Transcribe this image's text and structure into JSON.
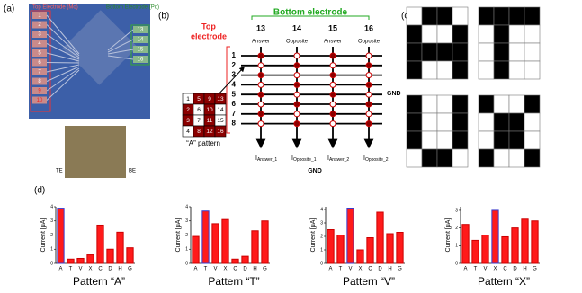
{
  "panel_a": {
    "label": "(a)",
    "top_electrode": "Top Electrode (Mo)",
    "bottom_electrode": "Bottom Electrode (Pd)",
    "top_numbers": [
      "1",
      "2",
      "3",
      "4",
      "5",
      "6",
      "7",
      "8",
      "9",
      "10"
    ],
    "bottom_numbers": [
      "13",
      "14",
      "15",
      "16"
    ],
    "te": "TE",
    "be": "BE"
  },
  "panel_b": {
    "label": "(b)",
    "bottom_electrode": "Bottom electrode",
    "top_electrode": [
      "Top",
      "electrode"
    ],
    "columns": [
      "13",
      "14",
      "15",
      "16"
    ],
    "column_labels": [
      "Answer",
      "Opposite",
      "Answer",
      "Opposite"
    ],
    "rows": [
      "1",
      "2",
      "3",
      "4",
      "5",
      "6",
      "7",
      "8"
    ],
    "gnd_right": "GND",
    "gnd_bottom": "GND",
    "currents": [
      {
        "symbol": "I",
        "subscript": "Answer_1"
      },
      {
        "symbol": "I",
        "subscript": "Opposite_1"
      },
      {
        "symbol": "I",
        "subscript": "Answer_2"
      },
      {
        "symbol": "I",
        "subscript": "Opposite_2"
      }
    ],
    "matrix": [
      [
        "1",
        "5",
        "9",
        "13"
      ],
      [
        "2",
        "6",
        "10",
        "14"
      ],
      [
        "3",
        "7",
        "11",
        "15"
      ],
      [
        "4",
        "8",
        "12",
        "16"
      ]
    ],
    "matrix_caption": "“A” pattern"
  },
  "panel_c": {
    "label": "(c)",
    "patterns": [
      [
        [
          0,
          1,
          1,
          0
        ],
        [
          1,
          0,
          0,
          1
        ],
        [
          1,
          1,
          1,
          1
        ],
        [
          1,
          0,
          0,
          1
        ]
      ],
      [
        [
          1,
          1,
          1,
          1
        ],
        [
          0,
          1,
          0,
          0
        ],
        [
          0,
          1,
          0,
          0
        ],
        [
          0,
          1,
          0,
          0
        ]
      ],
      [
        [
          1,
          0,
          0,
          1
        ],
        [
          1,
          0,
          0,
          1
        ],
        [
          1,
          0,
          0,
          1
        ],
        [
          0,
          1,
          1,
          0
        ]
      ],
      [
        [
          1,
          0,
          0,
          1
        ],
        [
          0,
          1,
          1,
          0
        ],
        [
          0,
          1,
          1,
          0
        ],
        [
          1,
          0,
          0,
          1
        ]
      ]
    ]
  },
  "panel_d": {
    "label": "(d)"
  },
  "chart_data": [
    {
      "type": "bar",
      "x_label": "Pattern “A”",
      "y_label": "Current [μA]",
      "categories": [
        "A",
        "T",
        "V",
        "X",
        "C",
        "D",
        "H",
        "G"
      ],
      "values": [
        3.9,
        0.3,
        0.35,
        0.6,
        2.7,
        1.0,
        2.2,
        1.1
      ],
      "color": "#ff1a1a",
      "edgecolors": [
        "#3a3acc",
        "#cc0000",
        "#cc0000",
        "#cc0000",
        "#cc0000",
        "#cc0000",
        "#cc0000",
        "#cc0000"
      ],
      "ylim": [
        0,
        4
      ],
      "yticks": [
        0,
        1,
        2,
        3,
        4
      ]
    },
    {
      "type": "bar",
      "x_label": "Pattern “T”",
      "y_label": "Current [μA]",
      "categories": [
        "A",
        "T",
        "V",
        "X",
        "C",
        "D",
        "H",
        "G"
      ],
      "values": [
        1.9,
        3.7,
        2.8,
        3.1,
        0.3,
        0.5,
        2.3,
        3.0
      ],
      "color": "#ff1a1a",
      "edgecolors": [
        "#cc0000",
        "#3a3acc",
        "#cc0000",
        "#cc0000",
        "#cc0000",
        "#cc0000",
        "#cc0000",
        "#cc0000"
      ],
      "ylim": [
        0,
        4
      ],
      "yticks": [
        0,
        1,
        2,
        3,
        4
      ]
    },
    {
      "type": "bar",
      "x_label": "Pattern “V”",
      "y_label": "Current [μA]",
      "categories": [
        "A",
        "T",
        "V",
        "X",
        "C",
        "D",
        "H",
        "G"
      ],
      "values": [
        2.5,
        2.1,
        4.1,
        1.0,
        1.9,
        3.8,
        2.2,
        2.3
      ],
      "color": "#ff1a1a",
      "edgecolors": [
        "#cc0000",
        "#cc0000",
        "#3a3acc",
        "#cc0000",
        "#cc0000",
        "#cc0000",
        "#cc0000",
        "#cc0000"
      ],
      "ylim": [
        0,
        4.2
      ],
      "yticks": [
        0,
        1,
        2,
        3,
        4
      ]
    },
    {
      "type": "bar",
      "x_label": "Pattern “X”",
      "y_label": "Current [μA]",
      "categories": [
        "A",
        "T",
        "V",
        "X",
        "C",
        "D",
        "H",
        "G"
      ],
      "values": [
        2.2,
        1.3,
        1.6,
        3.0,
        1.5,
        2.0,
        2.5,
        2.4
      ],
      "color": "#ff1a1a",
      "edgecolors": [
        "#cc0000",
        "#cc0000",
        "#cc0000",
        "#3a3acc",
        "#cc0000",
        "#cc0000",
        "#cc0000",
        "#cc0000"
      ],
      "ylim": [
        0,
        3.2
      ],
      "yticks": [
        0,
        1,
        2,
        3
      ]
    }
  ]
}
